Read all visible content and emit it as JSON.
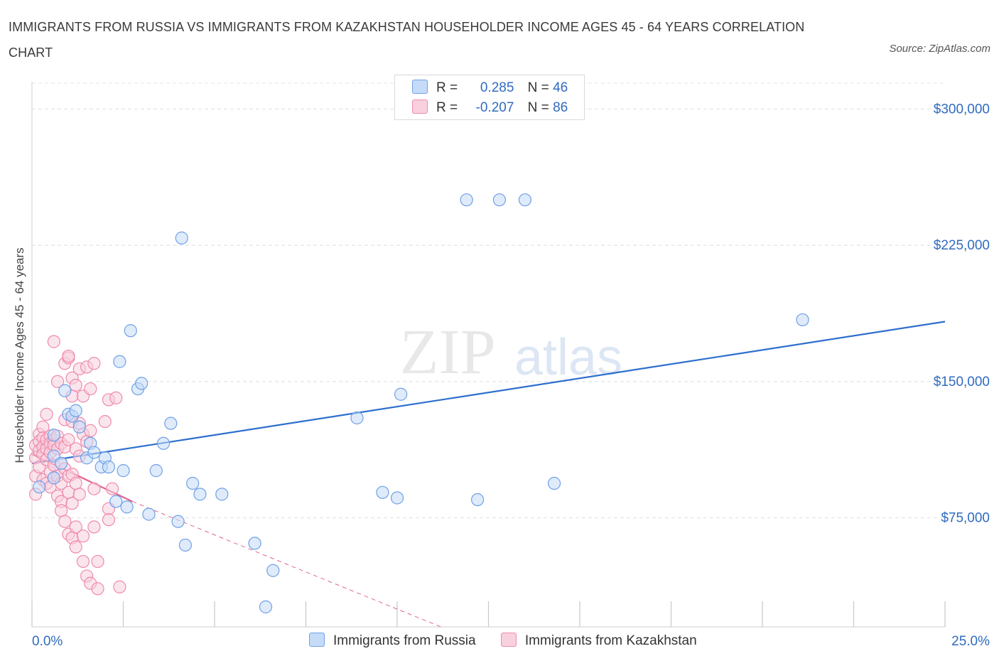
{
  "title": "IMMIGRANTS FROM RUSSIA VS IMMIGRANTS FROM KAZAKHSTAN HOUSEHOLDER INCOME AGES 45 - 64 YEARS CORRELATION CHART",
  "source": "Source: ZipAtlas.com",
  "watermark": {
    "zip": "ZIP",
    "atlas": "atlas"
  },
  "colors": {
    "russia": "#6fa0e6",
    "russia_fill": "#c5dbf7",
    "russia_line": "#2d6fce",
    "kazakhstan": "#ee8aab",
    "kazakhstan_fill": "#f8d0de",
    "kazakhstan_line": "#e0648f",
    "axis_label": "#2f6bc0"
  },
  "legend": {
    "russia": {
      "r_label": "R =",
      "r_value": "0.285",
      "n_label": "N =",
      "n_value": "46"
    },
    "kazakhstan": {
      "r_label": "R =",
      "r_value": "-0.207",
      "n_label": "N =",
      "n_value": "86"
    }
  },
  "bottom_legend": {
    "russia": "Immigrants from Russia",
    "kazakhstan": "Immigrants from Kazakhstan"
  },
  "chart_data": {
    "type": "scatter",
    "title": "IMMIGRANTS FROM RUSSIA VS IMMIGRANTS FROM KAZAKHSTAN HOUSEHOLDER INCOME AGES 45 - 64 YEARS CORRELATION CHART",
    "xlabel": "",
    "ylabel": "Householder Income Ages 45 - 64 years",
    "xlim": [
      0,
      25
    ],
    "ylim": [
      15000,
      315000
    ],
    "x_tick_labels": [
      "0.0%",
      "25.0%"
    ],
    "y_ticks": [
      75000,
      150000,
      225000,
      300000
    ],
    "y_tick_labels": [
      "$75,000",
      "$150,000",
      "$225,000",
      "$300,000"
    ],
    "grid": true,
    "series": [
      {
        "name": "Immigrants from Russia",
        "points": [
          [
            0.6,
            120500
          ],
          [
            0.6,
            109000
          ],
          [
            0.6,
            97000
          ],
          [
            0.8,
            105000
          ],
          [
            0.9,
            145000
          ],
          [
            1.0,
            132000
          ],
          [
            1.1,
            131000
          ],
          [
            1.2,
            134000
          ],
          [
            1.3,
            125000
          ],
          [
            1.5,
            108000
          ],
          [
            1.6,
            116000
          ],
          [
            1.7,
            111000
          ],
          [
            1.9,
            103000
          ],
          [
            2.0,
            108000
          ],
          [
            2.1,
            103000
          ],
          [
            2.3,
            84000
          ],
          [
            2.4,
            161000
          ],
          [
            2.5,
            101000
          ],
          [
            2.6,
            81000
          ],
          [
            2.7,
            178000
          ],
          [
            2.9,
            146000
          ],
          [
            3.0,
            149000
          ],
          [
            3.2,
            77000
          ],
          [
            3.4,
            101000
          ],
          [
            3.6,
            116000
          ],
          [
            3.8,
            127000
          ],
          [
            4.0,
            73000
          ],
          [
            4.1,
            229000
          ],
          [
            4.2,
            60000
          ],
          [
            4.4,
            94000
          ],
          [
            4.6,
            88000
          ],
          [
            5.2,
            88000
          ],
          [
            6.1,
            61000
          ],
          [
            6.6,
            46000
          ],
          [
            6.4,
            26000
          ],
          [
            8.9,
            130000
          ],
          [
            9.6,
            89000
          ],
          [
            10.0,
            86000
          ],
          [
            10.1,
            143000
          ],
          [
            11.9,
            250000
          ],
          [
            12.2,
            85000
          ],
          [
            12.8,
            250000
          ],
          [
            13.5,
            250000
          ],
          [
            14.3,
            94000
          ],
          [
            21.1,
            184000
          ],
          [
            0.2,
            92000
          ]
        ]
      },
      {
        "name": "Immigrants from Kazakhstan",
        "points": [
          [
            0.1,
            115000
          ],
          [
            0.1,
            108000
          ],
          [
            0.1,
            98000
          ],
          [
            0.1,
            88000
          ],
          [
            0.2,
            121000
          ],
          [
            0.2,
            117000
          ],
          [
            0.2,
            112000
          ],
          [
            0.2,
            103000
          ],
          [
            0.3,
            125000
          ],
          [
            0.3,
            119000
          ],
          [
            0.3,
            114000
          ],
          [
            0.3,
            110000
          ],
          [
            0.3,
            96000
          ],
          [
            0.4,
            132000
          ],
          [
            0.4,
            118000
          ],
          [
            0.4,
            113000
          ],
          [
            0.4,
            107000
          ],
          [
            0.4,
            94000
          ],
          [
            0.5,
            120000
          ],
          [
            0.5,
            116000
          ],
          [
            0.5,
            111000
          ],
          [
            0.5,
            100000
          ],
          [
            0.5,
            92000
          ],
          [
            0.6,
            172000
          ],
          [
            0.6,
            118000
          ],
          [
            0.6,
            115000
          ],
          [
            0.6,
            104000
          ],
          [
            0.6,
            97000
          ],
          [
            0.7,
            150000
          ],
          [
            0.7,
            120000
          ],
          [
            0.7,
            113000
          ],
          [
            0.7,
            98000
          ],
          [
            0.7,
            87000
          ],
          [
            0.8,
            116000
          ],
          [
            0.8,
            105000
          ],
          [
            0.8,
            94000
          ],
          [
            0.8,
            84000
          ],
          [
            0.8,
            79000
          ],
          [
            0.9,
            160000
          ],
          [
            0.9,
            129000
          ],
          [
            0.9,
            114000
          ],
          [
            0.9,
            102000
          ],
          [
            0.9,
            73000
          ],
          [
            1.0,
            163000
          ],
          [
            1.0,
            164000
          ],
          [
            1.0,
            118000
          ],
          [
            1.0,
            98000
          ],
          [
            1.0,
            89000
          ],
          [
            1.0,
            66000
          ],
          [
            1.1,
            152000
          ],
          [
            1.1,
            142000
          ],
          [
            1.1,
            128000
          ],
          [
            1.1,
            99000
          ],
          [
            1.1,
            83000
          ],
          [
            1.1,
            64000
          ],
          [
            1.2,
            148000
          ],
          [
            1.2,
            113000
          ],
          [
            1.2,
            94000
          ],
          [
            1.2,
            70000
          ],
          [
            1.2,
            59000
          ],
          [
            1.3,
            157000
          ],
          [
            1.3,
            127000
          ],
          [
            1.3,
            109000
          ],
          [
            1.3,
            88000
          ],
          [
            1.4,
            142000
          ],
          [
            1.4,
            121000
          ],
          [
            1.4,
            65000
          ],
          [
            1.4,
            51000
          ],
          [
            1.5,
            158000
          ],
          [
            1.5,
            117000
          ],
          [
            1.5,
            43000
          ],
          [
            1.6,
            146000
          ],
          [
            1.6,
            123000
          ],
          [
            1.6,
            39000
          ],
          [
            1.7,
            160000
          ],
          [
            1.7,
            91000
          ],
          [
            1.7,
            70000
          ],
          [
            1.8,
            51000
          ],
          [
            1.8,
            36000
          ],
          [
            2.0,
            128000
          ],
          [
            2.1,
            140000
          ],
          [
            2.1,
            80000
          ],
          [
            2.1,
            74000
          ],
          [
            2.2,
            91000
          ],
          [
            2.3,
            141000
          ],
          [
            2.4,
            37000
          ]
        ]
      }
    ],
    "trendlines": [
      {
        "series": "Immigrants from Russia",
        "x": [
          0,
          25
        ],
        "y": [
          105000,
          183000
        ],
        "style": "solid"
      },
      {
        "series": "Immigrants from Kazakhstan",
        "x": [
          0,
          2.75
        ],
        "y": [
          110000,
          84000
        ],
        "style": "solid"
      },
      {
        "series": "Immigrants from Kazakhstan",
        "x": [
          2.75,
          11.2
        ],
        "y": [
          84000,
          15000
        ],
        "style": "dashed"
      }
    ]
  }
}
